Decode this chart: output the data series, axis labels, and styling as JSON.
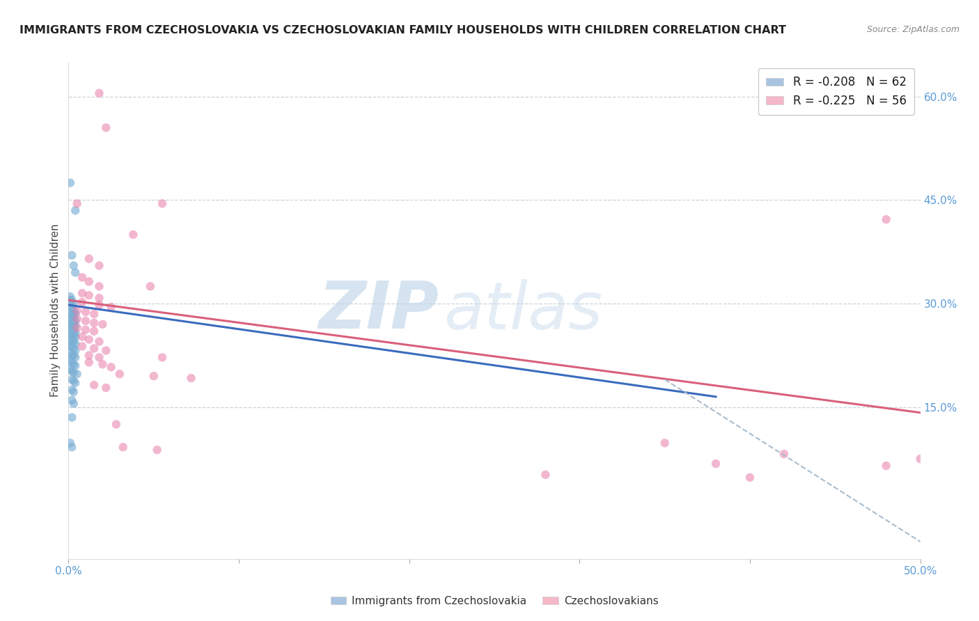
{
  "title": "IMMIGRANTS FROM CZECHOSLOVAKIA VS CZECHOSLOVAKIAN FAMILY HOUSEHOLDS WITH CHILDREN CORRELATION CHART",
  "source": "Source: ZipAtlas.com",
  "ylabel": "Family Households with Children",
  "ylabel_right_labels": [
    "60.0%",
    "45.0%",
    "30.0%",
    "15.0%"
  ],
  "ylabel_right_values": [
    0.6,
    0.45,
    0.3,
    0.15
  ],
  "xmin": 0.0,
  "xmax": 0.5,
  "ymin": -0.07,
  "ymax": 0.65,
  "blue_scatter": [
    [
      0.001,
      0.475
    ],
    [
      0.004,
      0.435
    ],
    [
      0.002,
      0.37
    ],
    [
      0.001,
      0.305
    ],
    [
      0.003,
      0.355
    ],
    [
      0.004,
      0.345
    ],
    [
      0.001,
      0.31
    ],
    [
      0.002,
      0.305
    ],
    [
      0.003,
      0.3
    ],
    [
      0.001,
      0.295
    ],
    [
      0.002,
      0.295
    ],
    [
      0.003,
      0.29
    ],
    [
      0.001,
      0.285
    ],
    [
      0.002,
      0.285
    ],
    [
      0.003,
      0.285
    ],
    [
      0.004,
      0.285
    ],
    [
      0.001,
      0.278
    ],
    [
      0.002,
      0.278
    ],
    [
      0.003,
      0.275
    ],
    [
      0.004,
      0.275
    ],
    [
      0.001,
      0.27
    ],
    [
      0.002,
      0.27
    ],
    [
      0.003,
      0.268
    ],
    [
      0.004,
      0.268
    ],
    [
      0.001,
      0.262
    ],
    [
      0.002,
      0.262
    ],
    [
      0.003,
      0.26
    ],
    [
      0.004,
      0.258
    ],
    [
      0.001,
      0.255
    ],
    [
      0.002,
      0.255
    ],
    [
      0.003,
      0.252
    ],
    [
      0.004,
      0.252
    ],
    [
      0.001,
      0.248
    ],
    [
      0.002,
      0.245
    ],
    [
      0.003,
      0.245
    ],
    [
      0.004,
      0.242
    ],
    [
      0.001,
      0.238
    ],
    [
      0.002,
      0.238
    ],
    [
      0.003,
      0.235
    ],
    [
      0.004,
      0.232
    ],
    [
      0.001,
      0.228
    ],
    [
      0.002,
      0.225
    ],
    [
      0.003,
      0.225
    ],
    [
      0.004,
      0.222
    ],
    [
      0.001,
      0.218
    ],
    [
      0.002,
      0.215
    ],
    [
      0.003,
      0.212
    ],
    [
      0.004,
      0.21
    ],
    [
      0.001,
      0.205
    ],
    [
      0.002,
      0.202
    ],
    [
      0.003,
      0.2
    ],
    [
      0.005,
      0.198
    ],
    [
      0.002,
      0.19
    ],
    [
      0.003,
      0.188
    ],
    [
      0.004,
      0.185
    ],
    [
      0.002,
      0.175
    ],
    [
      0.003,
      0.172
    ],
    [
      0.002,
      0.16
    ],
    [
      0.003,
      0.155
    ],
    [
      0.002,
      0.135
    ],
    [
      0.001,
      0.098
    ],
    [
      0.002,
      0.092
    ]
  ],
  "pink_scatter": [
    [
      0.018,
      0.605
    ],
    [
      0.022,
      0.555
    ],
    [
      0.005,
      0.445
    ],
    [
      0.055,
      0.445
    ],
    [
      0.038,
      0.4
    ],
    [
      0.012,
      0.365
    ],
    [
      0.018,
      0.355
    ],
    [
      0.008,
      0.338
    ],
    [
      0.012,
      0.332
    ],
    [
      0.018,
      0.325
    ],
    [
      0.048,
      0.325
    ],
    [
      0.008,
      0.315
    ],
    [
      0.012,
      0.312
    ],
    [
      0.018,
      0.308
    ],
    [
      0.008,
      0.302
    ],
    [
      0.018,
      0.298
    ],
    [
      0.025,
      0.295
    ],
    [
      0.005,
      0.29
    ],
    [
      0.01,
      0.288
    ],
    [
      0.015,
      0.285
    ],
    [
      0.005,
      0.278
    ],
    [
      0.01,
      0.275
    ],
    [
      0.015,
      0.272
    ],
    [
      0.02,
      0.27
    ],
    [
      0.005,
      0.265
    ],
    [
      0.01,
      0.262
    ],
    [
      0.015,
      0.26
    ],
    [
      0.008,
      0.252
    ],
    [
      0.012,
      0.248
    ],
    [
      0.018,
      0.245
    ],
    [
      0.008,
      0.238
    ],
    [
      0.015,
      0.235
    ],
    [
      0.022,
      0.232
    ],
    [
      0.012,
      0.225
    ],
    [
      0.018,
      0.222
    ],
    [
      0.055,
      0.222
    ],
    [
      0.012,
      0.215
    ],
    [
      0.02,
      0.212
    ],
    [
      0.025,
      0.208
    ],
    [
      0.03,
      0.198
    ],
    [
      0.05,
      0.195
    ],
    [
      0.072,
      0.192
    ],
    [
      0.015,
      0.182
    ],
    [
      0.022,
      0.178
    ],
    [
      0.028,
      0.125
    ],
    [
      0.032,
      0.092
    ],
    [
      0.052,
      0.088
    ],
    [
      0.48,
      0.422
    ],
    [
      0.35,
      0.098
    ],
    [
      0.42,
      0.082
    ],
    [
      0.5,
      0.075
    ],
    [
      0.38,
      0.068
    ],
    [
      0.48,
      0.065
    ],
    [
      0.28,
      0.052
    ],
    [
      0.4,
      0.048
    ]
  ],
  "blue_line": {
    "x0": 0.0,
    "y0": 0.298,
    "x1": 0.38,
    "y1": 0.165
  },
  "pink_line": {
    "x0": 0.0,
    "y0": 0.305,
    "x1": 0.5,
    "y1": 0.142
  },
  "blue_dashed_line": {
    "x0": 0.35,
    "y0": 0.19,
    "x1": 0.5,
    "y1": -0.045
  },
  "blue_scatter_color": "#7bafd4",
  "pink_scatter_color": "#e87da8",
  "blue_line_color": "#3b6bbd",
  "pink_line_color": "#d9607a",
  "dashed_color": "#aabccc",
  "legend_blue_patch": "#a8c4e0",
  "legend_pink_patch": "#f4b8c8",
  "background_color": "#ffffff",
  "grid_color": "#c8d4dc"
}
